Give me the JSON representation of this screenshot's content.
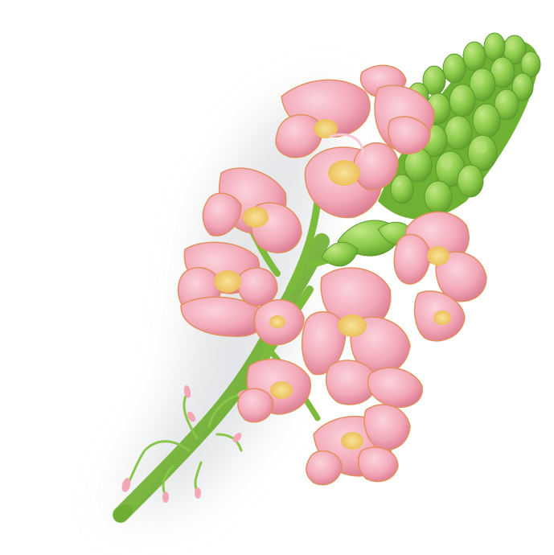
{
  "image": {
    "subject": "snapdragon-flower-spike",
    "colors": {
      "background": "#ffffff",
      "shadow": "#d9dadd",
      "petal": "#f3a9b8",
      "petal_light": "#f9c9d3",
      "petal_dark": "#d97a90",
      "petal_edge": "#e3905f",
      "throat": "#f3d36a",
      "stem": "#7dbb3c",
      "stem_dark": "#5a9a2a",
      "bud": "#8ccb4a",
      "bud_light": "#b4df74",
      "bud_dark": "#5f9e2d"
    }
  }
}
